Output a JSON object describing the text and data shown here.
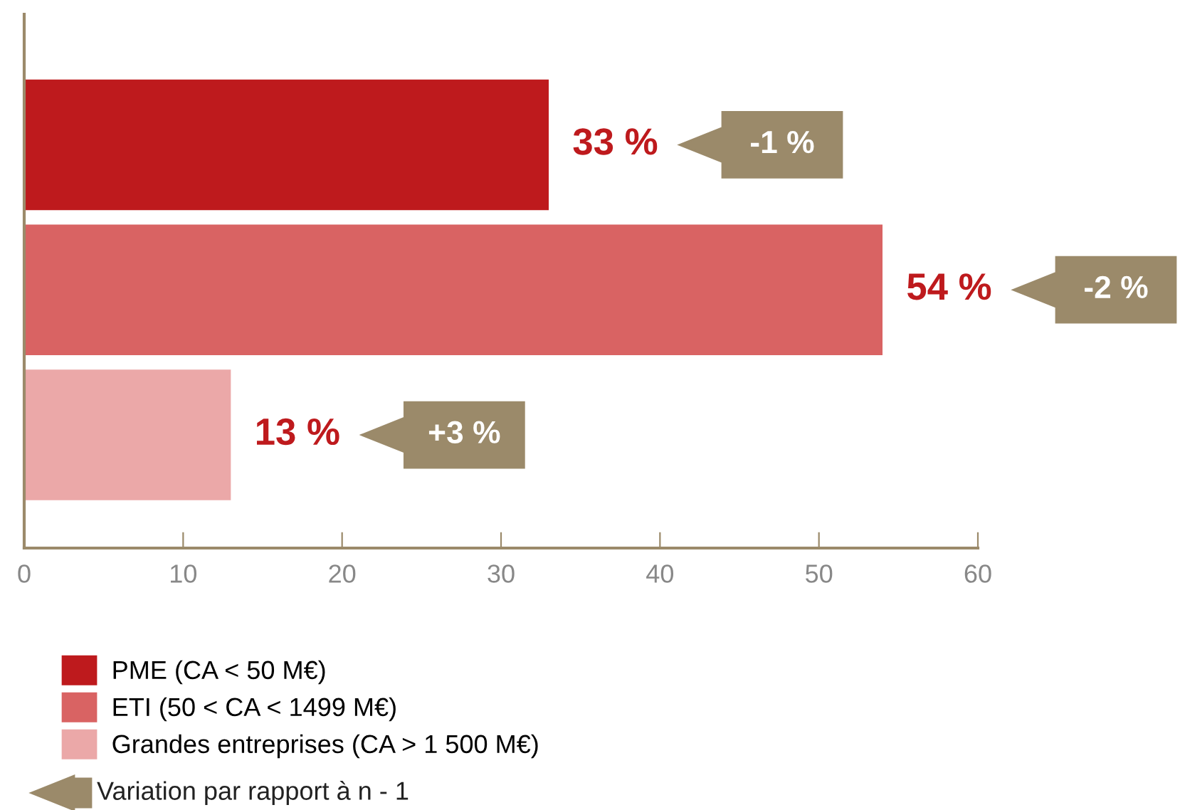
{
  "chart_data": {
    "type": "bar",
    "orientation": "horizontal",
    "categories": [
      null,
      null,
      null
    ],
    "series": [
      {
        "name": "PME (CA < 50 M€)",
        "color": "#be1a1d",
        "values": [
          33,
          null,
          null
        ],
        "value_labels": [
          "33 %",
          null,
          null
        ]
      },
      {
        "name": "ETI (50 < CA < 1499 M€)",
        "color": "#d96363",
        "values": [
          null,
          54,
          null
        ],
        "value_labels": [
          null,
          "54 %",
          null
        ]
      },
      {
        "name": "Grandes entreprises (CA > 1 500 M€)",
        "color": "#eba8a8",
        "values": [
          null,
          null,
          13
        ],
        "value_labels": [
          null,
          null,
          "13 %"
        ]
      }
    ],
    "xlim": [
      0,
      60
    ],
    "xticks": [
      0,
      10,
      20,
      30,
      40,
      50,
      60
    ],
    "grid": false,
    "legend": "bottom",
    "annotations": [
      "-1 %",
      "-2 %",
      "+3 %",
      "Variation par rapport à n - 1"
    ]
  }
}
